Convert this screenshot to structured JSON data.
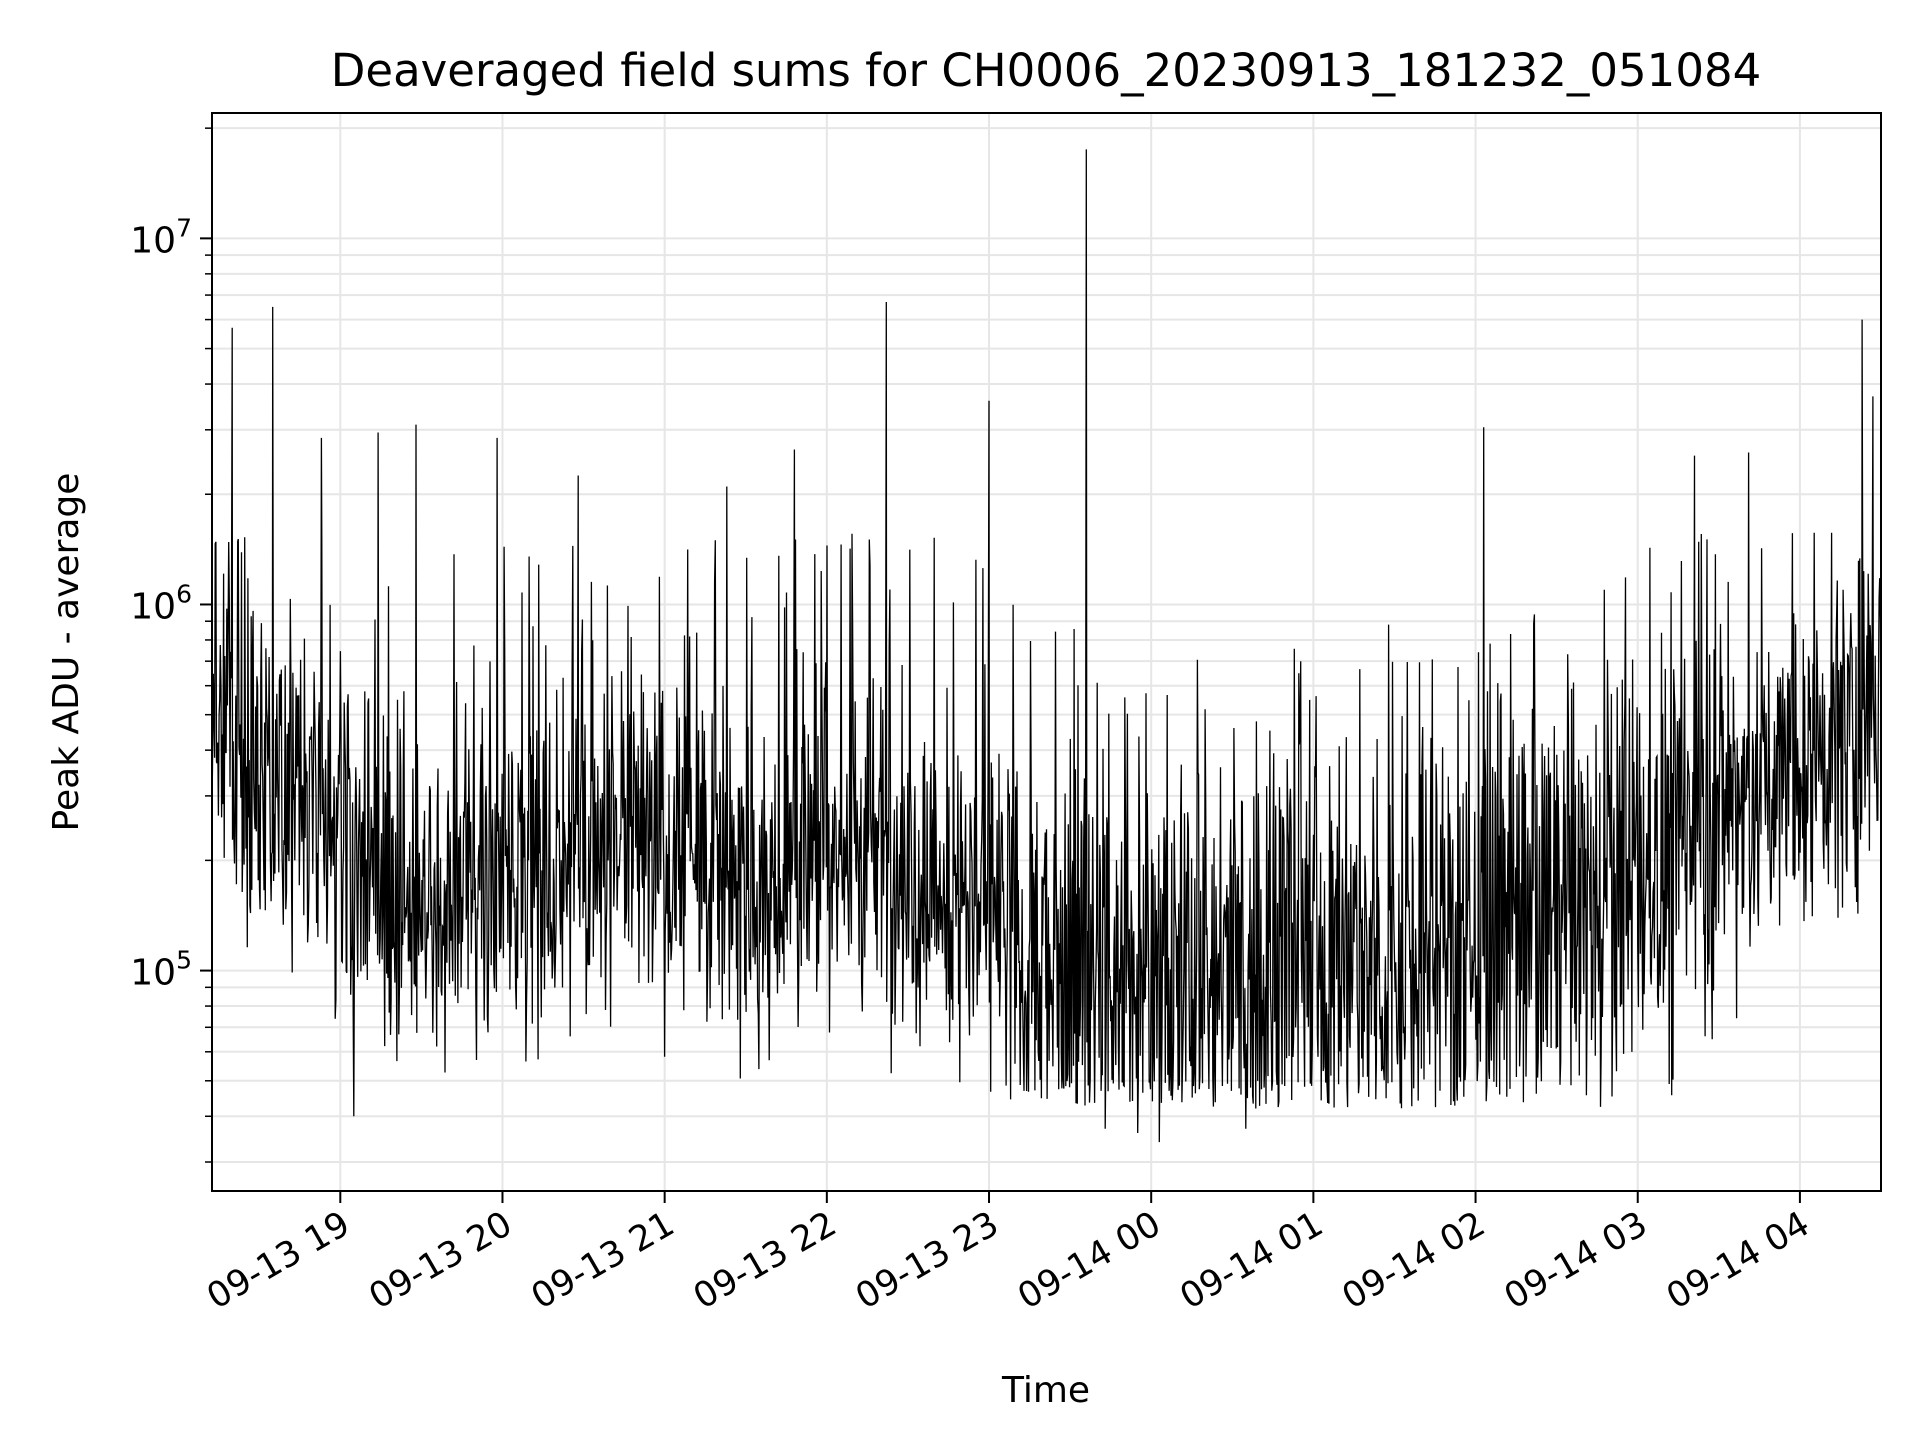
{
  "chart_data": {
    "type": "line",
    "title": "Deaveraged field sums for CH0006_20230913_181232_051084",
    "xlabel": "Time",
    "ylabel": "Peak ADU - average",
    "yscale": "log",
    "ylim": [
      25000,
      22000000
    ],
    "xlim": [
      "09-13 18:12:32",
      "09-14 04:30"
    ],
    "grid": true,
    "line_color": "#000000",
    "x_ticks": [
      {
        "label": "09-13 19",
        "hour": 19
      },
      {
        "label": "09-13 20",
        "hour": 20
      },
      {
        "label": "09-13 21",
        "hour": 21
      },
      {
        "label": "09-13 22",
        "hour": 22
      },
      {
        "label": "09-13 23",
        "hour": 23
      },
      {
        "label": "09-14 00",
        "hour": 24
      },
      {
        "label": "09-14 01",
        "hour": 25
      },
      {
        "label": "09-14 02",
        "hour": 26
      },
      {
        "label": "09-14 03",
        "hour": 27
      },
      {
        "label": "09-14 04",
        "hour": 28
      }
    ],
    "y_ticks": [
      {
        "base": "10",
        "exp": "5",
        "value": 100000
      },
      {
        "base": "10",
        "exp": "6",
        "value": 1000000
      },
      {
        "base": "10",
        "exp": "7",
        "value": 10000000
      }
    ],
    "series": [
      {
        "time_range": [
          "09-13 18:12:32",
          "09-14 04:30"
        ],
        "baseline": [
          [
            "09-13 18:12",
            400000
          ],
          [
            "09-13 18:30",
            300000
          ],
          [
            "09-13 19:00",
            250000
          ],
          [
            "09-13 19:30",
            150000
          ],
          [
            "09-13 20:00",
            200000
          ],
          [
            "09-13 20:30",
            220000
          ],
          [
            "09-13 21:00",
            200000
          ],
          [
            "09-13 21:30",
            170000
          ],
          [
            "09-13 22:00",
            220000
          ],
          [
            "09-13 22:30",
            200000
          ],
          [
            "09-13 23:00",
            150000
          ],
          [
            "09-13 23:30",
            100000
          ],
          [
            "09-14 00:00",
            80000
          ],
          [
            "09-14 00:30",
            100000
          ],
          [
            "09-14 01:00",
            110000
          ],
          [
            "09-14 01:30",
            110000
          ],
          [
            "09-14 02:00",
            120000
          ],
          [
            "09-14 02:30",
            130000
          ],
          [
            "09-14 03:00",
            170000
          ],
          [
            "09-14 03:30",
            260000
          ],
          [
            "09-14 04:00",
            350000
          ],
          [
            "09-14 04:30",
            500000
          ]
        ],
        "peaks": [
          [
            "09-13 18:20",
            5700000
          ],
          [
            "09-13 18:35",
            6500000
          ],
          [
            "09-13 18:53",
            2850000
          ],
          [
            "09-13 19:14",
            2950000
          ],
          [
            "09-13 19:28",
            3100000
          ],
          [
            "09-13 19:58",
            2850000
          ],
          [
            "09-13 20:28",
            2250000
          ],
          [
            "09-13 21:23",
            2100000
          ],
          [
            "09-13 21:48",
            2650000
          ],
          [
            "09-13 22:22",
            6700000
          ],
          [
            "09-13 23:00",
            3600000
          ],
          [
            "09-13 23:36",
            17500000
          ],
          [
            "09-14 02:03",
            3050000
          ],
          [
            "09-14 03:21",
            2550000
          ],
          [
            "09-14 03:41",
            2600000
          ],
          [
            "09-14 04:23",
            6000000
          ],
          [
            "09-14 04:27",
            3700000
          ]
        ],
        "dips": [
          [
            "09-13 19:05",
            40000
          ],
          [
            "09-13 23:43",
            37000
          ],
          [
            "09-13 23:55",
            36000
          ],
          [
            "09-14 00:03",
            34000
          ],
          [
            "09-14 00:35",
            37000
          ]
        ]
      }
    ]
  }
}
